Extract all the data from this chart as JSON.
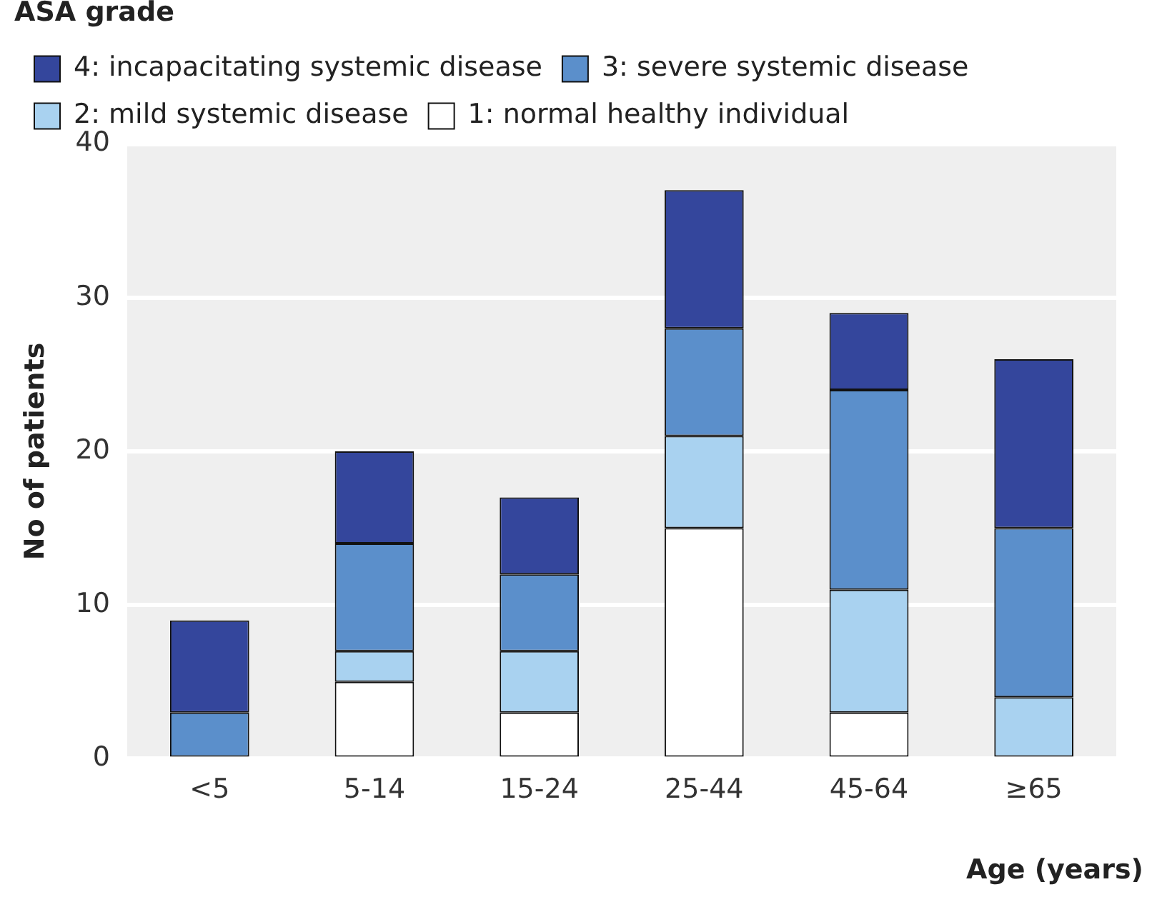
{
  "chart_data": {
    "type": "bar",
    "stacked": true,
    "xlabel": "Age (years)",
    "ylabel": "No of patients",
    "legend_title": "ASA grade",
    "legend": "top left",
    "grid": "y",
    "categories": [
      "<5",
      "5-14",
      "15-24",
      "25-44",
      "45-64",
      "≥65"
    ],
    "ylim": [
      0,
      40
    ],
    "yticks": [
      0,
      10,
      20,
      30,
      40
    ],
    "series": [
      {
        "name": "1: normal healthy individual",
        "color": "#ffffff",
        "values": [
          0,
          5,
          3,
          15,
          3,
          0
        ]
      },
      {
        "name": "2: mild systemic disease",
        "color": "#a9d2f0",
        "values": [
          0,
          2,
          4,
          6,
          8,
          4
        ]
      },
      {
        "name": "3: severe systemic disease",
        "color": "#5b8fcb",
        "values": [
          3,
          7,
          5,
          7,
          13,
          11
        ]
      },
      {
        "name": "4: incapacitating systemic disease",
        "color": "#34469c",
        "values": [
          6,
          6,
          5,
          9,
          5,
          11
        ]
      }
    ]
  }
}
